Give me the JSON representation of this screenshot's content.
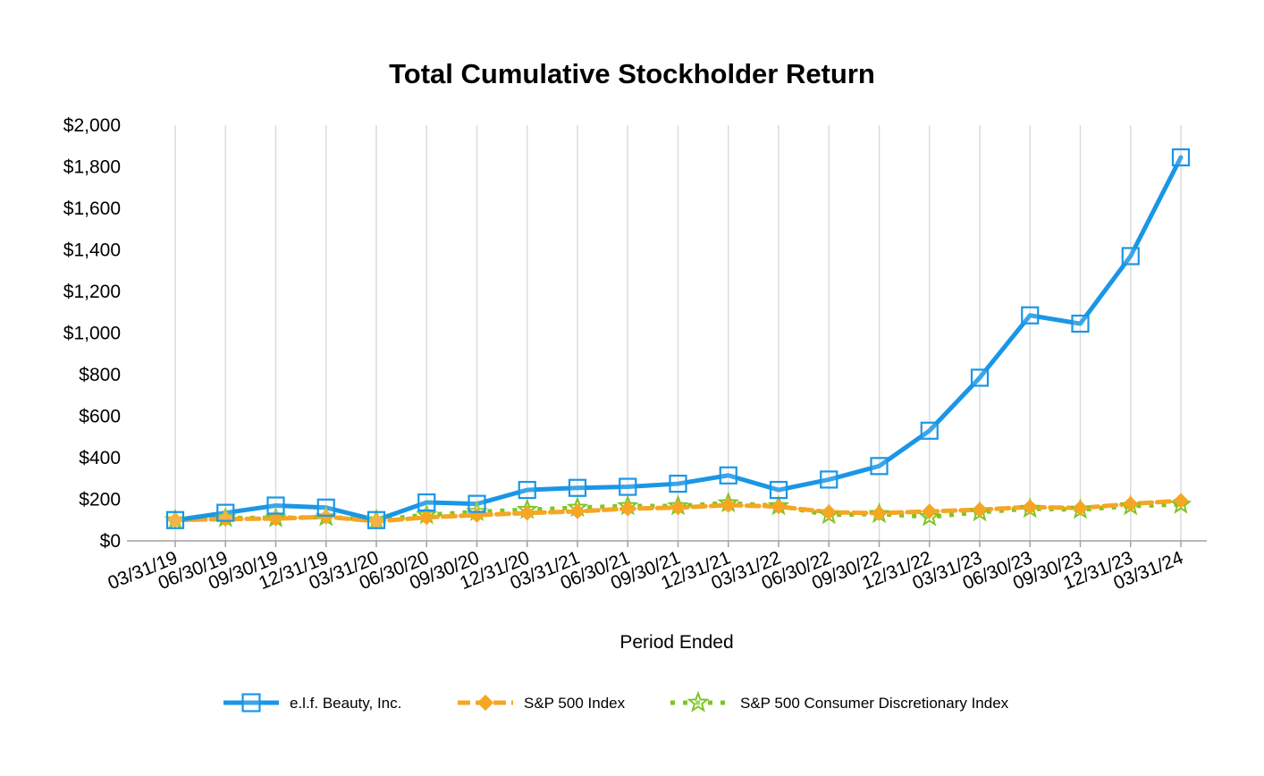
{
  "chart_data": {
    "type": "line",
    "title": "Total Cumulative Stockholder Return",
    "xlabel": "Period Ended",
    "ylabel": "",
    "ylim": [
      0,
      2000
    ],
    "yticks": [
      0,
      200,
      400,
      600,
      800,
      1000,
      1200,
      1400,
      1600,
      1800,
      2000
    ],
    "ytick_labels": [
      "$0",
      "$200",
      "$400",
      "$600",
      "$800",
      "$1,000",
      "$1,200",
      "$1,400",
      "$1,600",
      "$1,800",
      "$2,000"
    ],
    "categories": [
      "03/31/19",
      "06/30/19",
      "09/30/19",
      "12/31/19",
      "03/31/20",
      "06/30/20",
      "09/30/20",
      "12/31/20",
      "03/31/21",
      "06/30/21",
      "09/30/21",
      "12/31/21",
      "03/31/22",
      "06/30/22",
      "09/30/22",
      "12/31/22",
      "03/31/23",
      "06/30/23",
      "09/30/23",
      "12/31/23",
      "03/31/24"
    ],
    "grid": "vertical",
    "legend_position": "bottom",
    "series": [
      {
        "name": "e.l.f. Beauty, Inc.",
        "color": "#1A96E6",
        "marker": "square",
        "style": "solid",
        "values": [
          100,
          135,
          170,
          160,
          100,
          185,
          178,
          245,
          255,
          260,
          275,
          315,
          245,
          295,
          360,
          530,
          785,
          1085,
          1045,
          1370,
          1845
        ]
      },
      {
        "name": "S&P 500 Index",
        "color": "#F5A623",
        "marker": "diamond",
        "style": "dashed",
        "values": [
          100,
          105,
          107,
          116,
          94,
          113,
          124,
          134,
          142,
          155,
          160,
          172,
          165,
          138,
          133,
          142,
          150,
          163,
          158,
          178,
          193
        ]
      },
      {
        "name": "S&P 500 Consumer Discretionary Index",
        "color": "#7DC622",
        "marker": "star",
        "style": "dotted",
        "values": [
          100,
          110,
          110,
          115,
          100,
          125,
          140,
          150,
          160,
          168,
          168,
          182,
          168,
          125,
          130,
          115,
          138,
          155,
          150,
          168,
          175
        ]
      }
    ]
  }
}
